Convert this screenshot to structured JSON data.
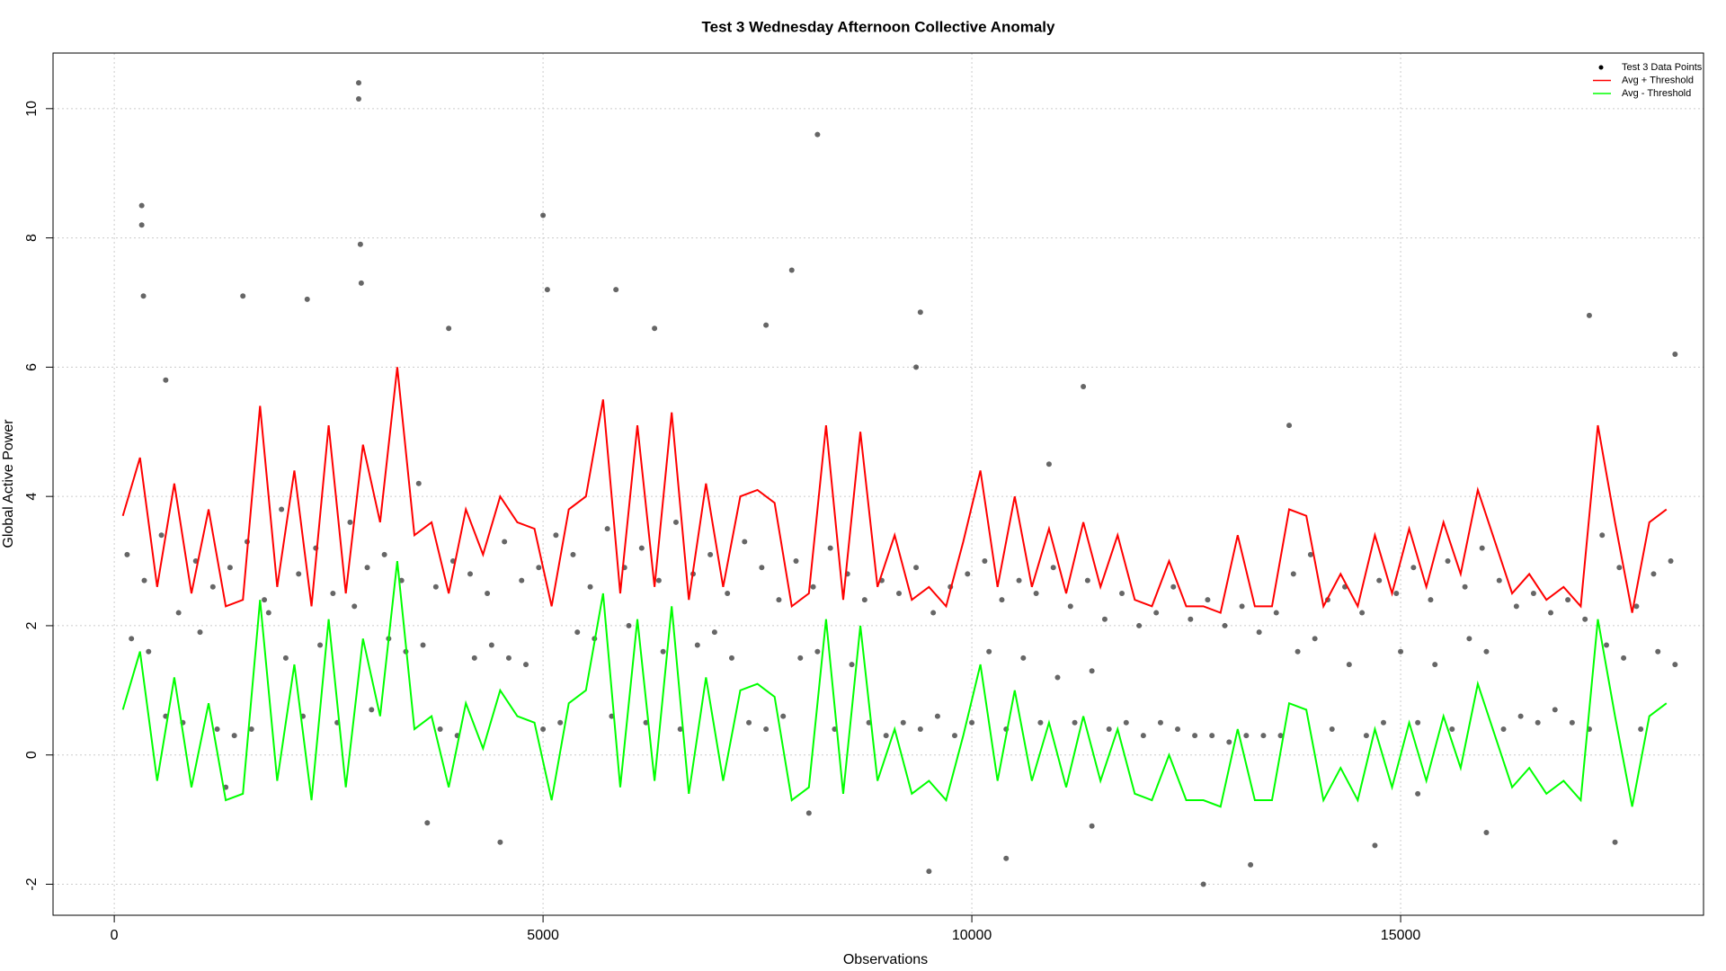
{
  "chart_data": {
    "type": "scatter-line",
    "title": "Test 3 Wednesday Afternoon Collective Anomaly",
    "x_label": "Observations",
    "y_label": "Global Active Power",
    "xlim": [
      -714,
      18532
    ],
    "ylim": [
      -2.48,
      10.86
    ],
    "xticks": [
      0,
      5000,
      10000,
      15000
    ],
    "yticks": [
      -2,
      0,
      2,
      4,
      6,
      8,
      10
    ],
    "grid": true,
    "legend_position": "top right",
    "series": [
      {
        "name": "Test 3 Data Points",
        "kind": "points",
        "color": "#000000",
        "x": [
          200,
          400,
          600,
          800,
          1000,
          1200,
          1400,
          1600,
          1800,
          2000,
          2200,
          2400,
          2600,
          2800,
          3000,
          3200,
          3400,
          3600,
          3800,
          4000,
          4200,
          4400,
          4600,
          4800,
          5000,
          5200,
          5400,
          5600,
          5800,
          6000,
          6200,
          6400,
          6600,
          6800,
          7000,
          7200,
          7400,
          7600,
          7800,
          8000,
          8200,
          8400,
          8600,
          8800,
          9000,
          9200,
          9400,
          9600,
          9800,
          10000,
          10200,
          10400,
          10600,
          10800,
          11000,
          11200,
          11400,
          11600,
          11800,
          12000,
          12200,
          12400,
          12600,
          12800,
          13000,
          13200,
          13400,
          13600,
          13800,
          14000,
          14200,
          14400,
          14600,
          14800,
          15000,
          15200,
          15400,
          15600,
          15800,
          16000,
          16200,
          16400,
          16600,
          16800,
          17000,
          17200,
          17400,
          17600,
          17800,
          18000,
          18200,
          150,
          350,
          550,
          750,
          950,
          1150,
          1350,
          1550,
          1750,
          1950,
          2150,
          2350,
          2550,
          2750,
          2950,
          3150,
          3350,
          3550,
          3750,
          3950,
          4150,
          4350,
          4550,
          4750,
          4950,
          5150,
          5350,
          5550,
          5750,
          5950,
          6150,
          6350,
          6550,
          6750,
          6950,
          7150,
          7350,
          7550,
          7750,
          7950,
          8150,
          8350,
          8550,
          8750,
          8950,
          9150,
          9350,
          9550,
          9750,
          9950,
          10150,
          10350,
          10550,
          10750,
          10950,
          11150,
          11350,
          11550,
          11750,
          11950,
          12150,
          12350,
          12550,
          12750,
          12950,
          13150,
          13350,
          13550,
          13750,
          13950,
          14150,
          14350,
          14550,
          14750,
          14950,
          15150,
          15350,
          15550,
          15750,
          15950,
          16150,
          16350,
          16550,
          16750,
          16950,
          17150,
          17350,
          17550,
          17750,
          17950,
          18150,
          2850,
          2850,
          320,
          320,
          8200,
          5000,
          2870,
          2880,
          340,
          1500,
          2250,
          5050,
          5850,
          7900,
          9400,
          17200,
          7600,
          6300,
          3900,
          18200,
          9500,
          12700,
          10400,
          4500,
          17500,
          3650,
          13250,
          14700,
          16000,
          600,
          9350,
          11300,
          10900,
          13700,
          8100,
          11400,
          1300,
          15200
        ],
        "y": [
          1.8,
          1.6,
          0.6,
          0.5,
          1.9,
          0.4,
          0.3,
          0.4,
          2.2,
          1.5,
          0.6,
          1.7,
          0.5,
          2.3,
          0.7,
          1.8,
          1.6,
          1.7,
          0.4,
          0.3,
          1.5,
          1.7,
          1.5,
          1.4,
          0.4,
          0.5,
          1.9,
          1.8,
          0.6,
          2.0,
          0.5,
          1.6,
          0.4,
          1.7,
          1.9,
          1.5,
          0.5,
          0.4,
          0.6,
          1.5,
          1.6,
          0.4,
          1.4,
          0.5,
          0.3,
          0.5,
          0.4,
          0.6,
          0.3,
          0.5,
          1.6,
          0.4,
          1.5,
          0.5,
          1.2,
          0.5,
          1.3,
          0.4,
          0.5,
          0.3,
          0.5,
          0.4,
          0.3,
          0.3,
          0.2,
          0.3,
          0.3,
          0.3,
          1.6,
          1.8,
          0.4,
          1.4,
          0.3,
          0.5,
          1.6,
          0.5,
          1.4,
          0.4,
          1.8,
          1.6,
          0.4,
          0.6,
          0.5,
          0.7,
          0.5,
          0.4,
          1.7,
          1.5,
          0.4,
          1.6,
          1.4,
          3.1,
          2.7,
          3.4,
          2.2,
          3.0,
          2.6,
          2.9,
          3.3,
          2.4,
          3.8,
          2.8,
          3.2,
          2.5,
          3.6,
          2.9,
          3.1,
          2.7,
          4.2,
          2.6,
          3.0,
          2.8,
          2.5,
          3.3,
          2.7,
          2.9,
          3.4,
          3.1,
          2.6,
          3.5,
          2.9,
          3.2,
          2.7,
          3.6,
          2.8,
          3.1,
          2.5,
          3.3,
          2.9,
          2.4,
          3.0,
          2.6,
          3.2,
          2.8,
          2.4,
          2.7,
          2.5,
          2.9,
          2.2,
          2.6,
          2.8,
          3.0,
          2.4,
          2.7,
          2.5,
          2.9,
          2.3,
          2.7,
          2.1,
          2.5,
          2.0,
          2.2,
          2.6,
          2.1,
          2.4,
          2.0,
          2.3,
          1.9,
          2.2,
          2.8,
          3.1,
          2.4,
          2.6,
          2.2,
          2.7,
          2.5,
          2.9,
          2.4,
          3.0,
          2.6,
          3.2,
          2.7,
          2.3,
          2.5,
          2.2,
          2.4,
          2.1,
          3.4,
          2.9,
          2.3,
          2.8,
          3.0,
          10.4,
          10.15,
          8.5,
          8.2,
          9.6,
          8.35,
          7.9,
          7.3,
          7.1,
          7.1,
          7.05,
          7.2,
          7.2,
          7.5,
          6.85,
          6.8,
          6.65,
          6.6,
          6.6,
          6.2,
          -1.8,
          -2.0,
          -1.6,
          -1.35,
          -1.35,
          -1.05,
          -1.7,
          -1.4,
          -1.2,
          5.8,
          6.0,
          5.7,
          4.5,
          5.1,
          -0.9,
          -1.1,
          -0.5,
          -0.6
        ]
      },
      {
        "name": "Avg + Threshold",
        "kind": "line",
        "color": "#ff0000",
        "x": [
          100,
          300,
          500,
          700,
          900,
          1100,
          1300,
          1500,
          1700,
          1900,
          2100,
          2300,
          2500,
          2700,
          2900,
          3100,
          3300,
          3500,
          3700,
          3900,
          4100,
          4300,
          4500,
          4700,
          4900,
          5100,
          5300,
          5500,
          5700,
          5900,
          6100,
          6300,
          6500,
          6700,
          6900,
          7100,
          7300,
          7500,
          7700,
          7900,
          8100,
          8300,
          8500,
          8700,
          8900,
          9100,
          9300,
          9500,
          9700,
          9900,
          10100,
          10300,
          10500,
          10700,
          10900,
          11100,
          11300,
          11500,
          11700,
          11900,
          12100,
          12300,
          12500,
          12700,
          12900,
          13100,
          13300,
          13500,
          13700,
          13900,
          14100,
          14300,
          14500,
          14700,
          14900,
          15100,
          15300,
          15500,
          15700,
          15900,
          16100,
          16300,
          16500,
          16700,
          16900,
          17100,
          17300,
          17500,
          17700,
          17900,
          18100
        ],
        "values": [
          3.7,
          4.6,
          2.6,
          4.2,
          2.5,
          3.8,
          2.3,
          2.4,
          5.4,
          2.6,
          4.4,
          2.3,
          5.1,
          2.5,
          4.8,
          3.6,
          6.0,
          3.4,
          3.6,
          2.5,
          3.8,
          3.1,
          4.0,
          3.6,
          3.5,
          2.3,
          3.8,
          4.0,
          5.5,
          2.5,
          5.1,
          2.6,
          5.3,
          2.4,
          4.2,
          2.6,
          4.0,
          4.1,
          3.9,
          2.3,
          2.5,
          5.1,
          2.4,
          5.0,
          2.6,
          3.4,
          2.4,
          2.6,
          2.3,
          3.3,
          4.4,
          2.6,
          4.0,
          2.6,
          3.5,
          2.5,
          3.6,
          2.6,
          3.4,
          2.4,
          2.3,
          3.0,
          2.3,
          2.3,
          2.2,
          3.4,
          2.3,
          2.3,
          3.8,
          3.7,
          2.3,
          2.8,
          2.3,
          3.4,
          2.5,
          3.5,
          2.6,
          3.6,
          2.8,
          4.1,
          3.3,
          2.5,
          2.8,
          2.4,
          2.6,
          2.3,
          5.1,
          3.6,
          2.2,
          3.6,
          3.8
        ]
      },
      {
        "name": "Avg - Threshold",
        "kind": "line",
        "color": "#00ff00",
        "x": [
          100,
          300,
          500,
          700,
          900,
          1100,
          1300,
          1500,
          1700,
          1900,
          2100,
          2300,
          2500,
          2700,
          2900,
          3100,
          3300,
          3500,
          3700,
          3900,
          4100,
          4300,
          4500,
          4700,
          4900,
          5100,
          5300,
          5500,
          5700,
          5900,
          6100,
          6300,
          6500,
          6700,
          6900,
          7100,
          7300,
          7500,
          7700,
          7900,
          8100,
          8300,
          8500,
          8700,
          8900,
          9100,
          9300,
          9500,
          9700,
          9900,
          10100,
          10300,
          10500,
          10700,
          10900,
          11100,
          11300,
          11500,
          11700,
          11900,
          12100,
          12300,
          12500,
          12700,
          12900,
          13100,
          13300,
          13500,
          13700,
          13900,
          14100,
          14300,
          14500,
          14700,
          14900,
          15100,
          15300,
          15500,
          15700,
          15900,
          16100,
          16300,
          16500,
          16700,
          16900,
          17100,
          17300,
          17500,
          17700,
          17900,
          18100
        ],
        "values": [
          0.7,
          1.6,
          -0.4,
          1.2,
          -0.5,
          0.8,
          -0.7,
          -0.6,
          2.4,
          -0.4,
          1.4,
          -0.7,
          2.1,
          -0.5,
          1.8,
          0.6,
          3.0,
          0.4,
          0.6,
          -0.5,
          0.8,
          0.1,
          1.0,
          0.6,
          0.5,
          -0.7,
          0.8,
          1.0,
          2.5,
          -0.5,
          2.1,
          -0.4,
          2.3,
          -0.6,
          1.2,
          -0.4,
          1.0,
          1.1,
          0.9,
          -0.7,
          -0.5,
          2.1,
          -0.6,
          2.0,
          -0.4,
          0.4,
          -0.6,
          -0.4,
          -0.7,
          0.3,
          1.4,
          -0.4,
          1.0,
          -0.4,
          0.5,
          -0.5,
          0.6,
          -0.4,
          0.4,
          -0.6,
          -0.7,
          0.0,
          -0.7,
          -0.7,
          -0.8,
          0.4,
          -0.7,
          -0.7,
          0.8,
          0.7,
          -0.7,
          -0.2,
          -0.7,
          0.4,
          -0.5,
          0.5,
          -0.4,
          0.6,
          -0.2,
          1.1,
          0.3,
          -0.5,
          -0.2,
          -0.6,
          -0.4,
          -0.7,
          2.1,
          0.6,
          -0.8,
          0.6,
          0.8
        ]
      }
    ]
  }
}
